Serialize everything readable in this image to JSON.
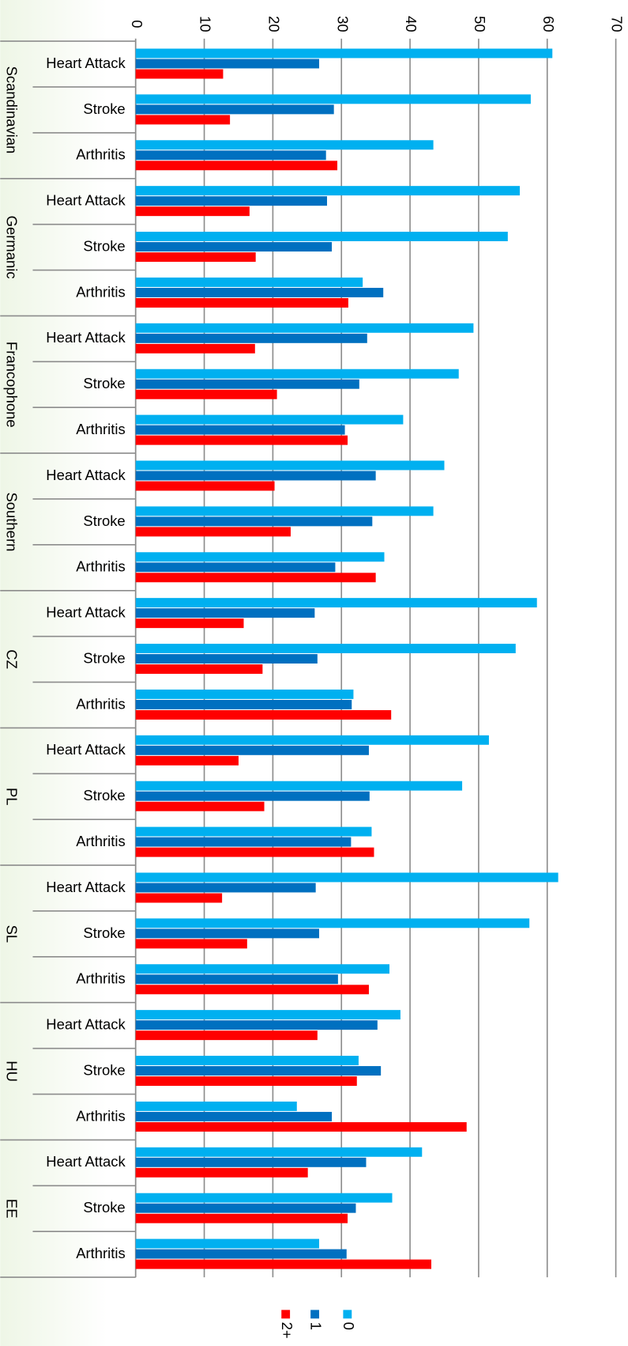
{
  "chart_data": {
    "type": "bar",
    "orientation": "horizontal",
    "groups": [
      "Scandinavian",
      "Germanic",
      "Francophone",
      "Southern",
      "CZ",
      "PL",
      "SL",
      "HU",
      "EE"
    ],
    "categories": [
      "Heart Attack",
      "Stroke",
      "Arthritis",
      "Heart Attack",
      "Stroke",
      "Arthritis",
      "Heart Attack",
      "Stroke",
      "Arthritis",
      "Heart Attack",
      "Stroke",
      "Arthritis",
      "Heart Attack",
      "Stroke",
      "Arthritis",
      "Heart Attack",
      "Stroke",
      "Arthritis",
      "Heart Attack",
      "Stroke",
      "Arthritis",
      "Heart Attack",
      "Stroke",
      "Arthritis",
      "Heart Attack",
      "Stroke",
      "Arthritis"
    ],
    "series": [
      {
        "name": "0",
        "color": "#00b0f0",
        "values": [
          60.75,
          57.6,
          43.4,
          56,
          54.25,
          33.1,
          49.25,
          47.1,
          39,
          45,
          43.4,
          36.25,
          58.5,
          55.4,
          31.75,
          51.5,
          47.6,
          34.4,
          61.6,
          57.4,
          37,
          38.6,
          32.5,
          23.5,
          41.75,
          37.4,
          26.75
        ]
      },
      {
        "name": "1",
        "color": "#0070c0",
        "values": [
          26.75,
          28.9,
          27.75,
          27.9,
          28.6,
          36.1,
          33.75,
          32.6,
          30.5,
          35,
          34.5,
          29.1,
          26.1,
          26.5,
          31.5,
          34,
          34.1,
          31.4,
          26.25,
          26.75,
          29.5,
          35.25,
          35.75,
          28.6,
          33.6,
          32.1,
          30.75
        ]
      },
      {
        "name": "2+",
        "color": "#ff0000",
        "values": [
          12.75,
          13.75,
          29.4,
          16.6,
          17.5,
          31,
          17.4,
          20.6,
          30.9,
          20.25,
          22.6,
          35,
          15.75,
          18.5,
          37.25,
          15,
          18.75,
          34.75,
          12.6,
          16.25,
          34,
          26.5,
          32.25,
          48.25,
          25.1,
          30.9,
          43.1
        ]
      }
    ],
    "xlim": [
      0,
      70
    ],
    "xticks": [
      0,
      10,
      20,
      30,
      40,
      50,
      60,
      70
    ],
    "grid": true
  }
}
